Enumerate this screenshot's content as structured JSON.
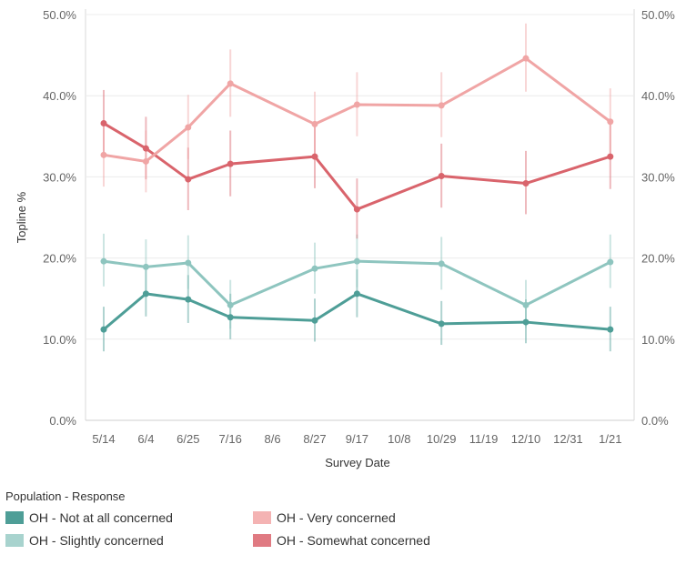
{
  "chart_data": {
    "type": "line",
    "xlabel": "Survey Date",
    "ylabel": "Topline %",
    "ylim": [
      0,
      50
    ],
    "y_ticks": [
      "0.0%",
      "10.0%",
      "20.0%",
      "30.0%",
      "40.0%",
      "50.0%"
    ],
    "x_ticks": [
      "5/14",
      "6/4",
      "6/25",
      "7/16",
      "8/6",
      "8/27",
      "9/17",
      "10/8",
      "10/29",
      "11/19",
      "12/10",
      "12/31",
      "1/21"
    ],
    "x_points": [
      "5/14",
      "6/4",
      "6/25",
      "7/16",
      "8/27",
      "9/17",
      "10/29",
      "12/10",
      "1/21"
    ],
    "grid": true,
    "legend": {
      "title": "Population - Response",
      "placement": "bottom-left"
    },
    "series": [
      {
        "name": "OH - Not at all concerned",
        "color": "#4e9e97",
        "values": [
          11.2,
          15.6,
          14.9,
          12.7,
          12.3,
          15.6,
          11.9,
          12.1,
          11.2
        ],
        "error_low": [
          8.5,
          12.8,
          12.0,
          10.0,
          9.7,
          12.7,
          9.3,
          9.5,
          8.5
        ],
        "error_high": [
          14.0,
          18.5,
          17.9,
          15.6,
          15.0,
          18.6,
          14.7,
          14.9,
          14.0
        ]
      },
      {
        "name": "OH - Slightly concerned",
        "color": "#8ec5bf",
        "values": [
          19.6,
          18.9,
          19.4,
          14.2,
          18.7,
          19.6,
          19.3,
          14.2,
          19.5
        ],
        "error_low": [
          16.5,
          15.8,
          16.2,
          11.3,
          15.6,
          16.4,
          16.1,
          11.4,
          16.3
        ],
        "error_high": [
          23.0,
          22.3,
          22.8,
          17.3,
          21.9,
          22.9,
          22.6,
          17.3,
          22.9
        ]
      },
      {
        "name": "OH - Somewhat concerned",
        "color": "#d9646c",
        "values": [
          36.6,
          33.5,
          29.7,
          31.6,
          32.5,
          26.0,
          30.1,
          29.2,
          32.5
        ],
        "error_low": [
          32.7,
          29.7,
          25.9,
          27.6,
          28.6,
          22.4,
          26.2,
          25.4,
          28.5
        ],
        "error_high": [
          40.7,
          37.4,
          33.6,
          35.7,
          36.5,
          29.8,
          34.1,
          33.2,
          36.5
        ]
      },
      {
        "name": "OH - Very concerned",
        "color": "#f0a5a5",
        "values": [
          32.7,
          31.9,
          36.1,
          41.5,
          36.5,
          38.9,
          38.8,
          44.6,
          36.8
        ],
        "error_low": [
          28.8,
          28.1,
          32.2,
          37.4,
          32.6,
          35.0,
          34.9,
          40.5,
          32.8
        ],
        "error_high": [
          36.7,
          35.7,
          40.1,
          45.7,
          40.5,
          42.9,
          42.9,
          48.9,
          40.9
        ]
      }
    ]
  },
  "legend_items": [
    {
      "label": "OH - Not at all concerned",
      "color": "#4e9e97"
    },
    {
      "label": "OH - Very concerned",
      "color": "#f4b3b3"
    },
    {
      "label": "OH - Slightly concerned",
      "color": "#a8d3ce"
    },
    {
      "label": "OH - Somewhat concerned",
      "color": "#e07a82"
    }
  ]
}
